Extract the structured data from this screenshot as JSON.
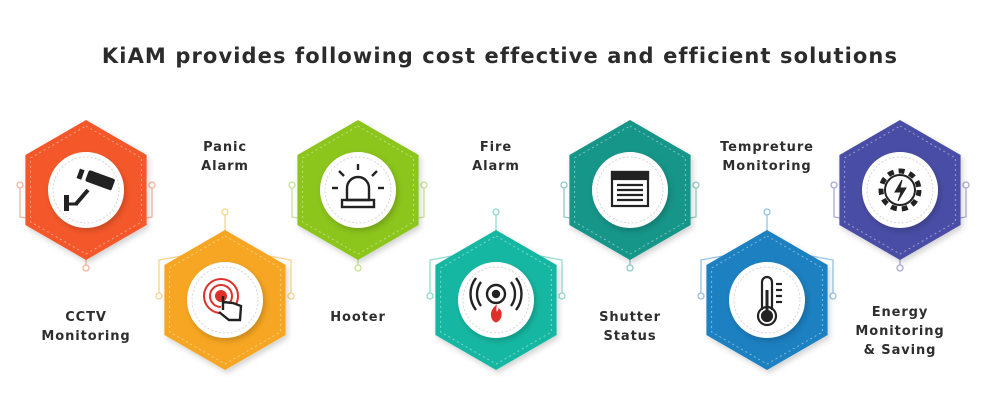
{
  "title": "KiAM provides following cost effective and efficient solutions",
  "solutions": [
    {
      "lines": [
        "CCTV",
        "Monitoring"
      ],
      "icon": "cctv-camera-icon",
      "color": "#f4582c"
    },
    {
      "lines": [
        "Panic",
        "Alarm"
      ],
      "icon": "panic-button-icon",
      "color": "#f6a623"
    },
    {
      "lines": [
        "Hooter"
      ],
      "icon": "siren-icon",
      "color": "#8cc51e"
    },
    {
      "lines": [
        "Fire",
        "Alarm"
      ],
      "icon": "fire-alarm-icon",
      "color": "#17b7a2"
    },
    {
      "lines": [
        "Shutter",
        "Status"
      ],
      "icon": "shutter-icon",
      "color": "#149589"
    },
    {
      "lines": [
        "Tempreture",
        "Monitoring"
      ],
      "icon": "thermometer-icon",
      "color": "#1e80c1"
    },
    {
      "lines": [
        "Energy",
        "Monitoring",
        "& Saving"
      ],
      "icon": "energy-gear-icon",
      "color": "#4a4ea5"
    }
  ]
}
